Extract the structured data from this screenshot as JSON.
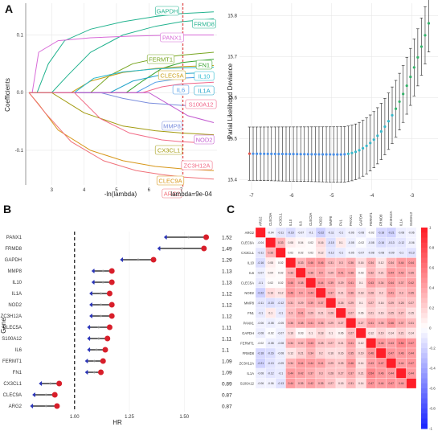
{
  "panels": {
    "a": "A",
    "b": "B",
    "c": "C"
  },
  "lasso_coef": {
    "type": "line",
    "xlabel": "-ln(lambda)",
    "ylabel": "Coefficients",
    "xticks": [
      3,
      4,
      5,
      6,
      7
    ],
    "yticks": [
      0.1,
      0.0,
      -0.1
    ],
    "xlim": [
      2.2,
      8.1
    ],
    "ylim": [
      -0.16,
      0.155
    ],
    "cutoff_x": 7.05,
    "cutoff_label": "lambda=9e-04",
    "series": [
      {
        "name": "GAPDH",
        "color": "#23b38f",
        "values": [
          [
            2.3,
            0
          ],
          [
            2.55,
            0
          ],
          [
            2.9,
            0.05
          ],
          [
            3.4,
            0.09
          ],
          [
            4.2,
            0.11
          ],
          [
            5.2,
            0.123
          ],
          [
            6.2,
            0.132
          ],
          [
            7.0,
            0.137
          ],
          [
            8.0,
            0.14
          ]
        ]
      },
      {
        "name": "FRMD8",
        "color": "#23b38f",
        "values": [
          [
            2.3,
            0
          ],
          [
            3.0,
            0
          ],
          [
            3.5,
            0.03
          ],
          [
            4.2,
            0.07
          ],
          [
            5.2,
            0.1
          ],
          [
            6.2,
            0.115
          ],
          [
            7.0,
            0.123
          ],
          [
            8.0,
            0.128
          ]
        ]
      },
      {
        "name": "PANX1",
        "color": "#d86bd8",
        "values": [
          [
            2.3,
            0
          ],
          [
            2.4,
            0
          ],
          [
            2.6,
            0.07
          ],
          [
            3.2,
            0.09
          ],
          [
            4.2,
            0.095
          ],
          [
            5.5,
            0.098
          ],
          [
            7.0,
            0.1
          ],
          [
            8.0,
            0.1
          ]
        ]
      },
      {
        "name": "FERMT1",
        "color": "#77a51f",
        "values": [
          [
            2.3,
            0
          ],
          [
            4.2,
            0
          ],
          [
            4.8,
            0.03
          ],
          [
            5.5,
            0.05
          ],
          [
            6.3,
            0.06
          ],
          [
            7.0,
            0.065
          ],
          [
            8.0,
            0.07
          ]
        ]
      },
      {
        "name": "FN1",
        "color": "#36a32f",
        "values": [
          [
            2.3,
            0
          ],
          [
            5.3,
            0
          ],
          [
            5.8,
            0.02
          ],
          [
            6.4,
            0.042
          ],
          [
            7.0,
            0.052
          ],
          [
            8.0,
            0.058
          ]
        ]
      },
      {
        "name": "CLEC5A",
        "color": "#c9a01a",
        "values": [
          [
            2.3,
            0
          ],
          [
            3.6,
            0
          ],
          [
            4.2,
            0.02
          ],
          [
            5.2,
            0.035
          ],
          [
            6.2,
            0.042
          ],
          [
            7.0,
            0.045
          ],
          [
            8.0,
            0.047
          ]
        ]
      },
      {
        "name": "IL10",
        "color": "#25b8cf",
        "values": [
          [
            2.3,
            0
          ],
          [
            3.7,
            0
          ],
          [
            4.3,
            0.025
          ],
          [
            5.2,
            0.036
          ],
          [
            6.2,
            0.041
          ],
          [
            7.0,
            0.043
          ],
          [
            8.0,
            0.044
          ]
        ]
      },
      {
        "name": "IL1A",
        "color": "#21a3c9",
        "values": [
          [
            2.3,
            0
          ],
          [
            4.8,
            0
          ],
          [
            5.5,
            0.02
          ],
          [
            6.3,
            0.03
          ],
          [
            7.0,
            0.033
          ],
          [
            8.0,
            0.035
          ]
        ]
      },
      {
        "name": "IL6",
        "color": "#4e9be6",
        "values": [
          [
            2.3,
            0
          ],
          [
            5.6,
            0
          ],
          [
            6.2,
            0.018
          ],
          [
            7.0,
            0.025
          ],
          [
            8.0,
            0.028
          ]
        ]
      },
      {
        "name": "S100A12",
        "color": "#f0668a",
        "values": [
          [
            2.3,
            0
          ],
          [
            5.8,
            0
          ],
          [
            6.4,
            0.01
          ],
          [
            7.0,
            0.015
          ],
          [
            8.0,
            0.018
          ]
        ]
      },
      {
        "name": "MMP8",
        "color": "#7a8ddd",
        "values": [
          [
            2.3,
            0
          ],
          [
            4.5,
            0
          ],
          [
            5.2,
            -0.01
          ],
          [
            6.0,
            -0.018
          ],
          [
            7.0,
            -0.022
          ],
          [
            8.0,
            -0.024
          ]
        ]
      },
      {
        "name": "NOD2",
        "color": "#c25ad0",
        "values": [
          [
            2.3,
            0
          ],
          [
            6.0,
            0
          ],
          [
            6.6,
            -0.02
          ],
          [
            7.2,
            -0.04
          ],
          [
            8.0,
            -0.052
          ]
        ]
      },
      {
        "name": "CX3CL1",
        "color": "#a39b10",
        "values": [
          [
            2.3,
            0
          ],
          [
            3.0,
            0
          ],
          [
            4.0,
            -0.035
          ],
          [
            5.2,
            -0.058
          ],
          [
            6.2,
            -0.066
          ],
          [
            7.0,
            -0.07
          ],
          [
            8.0,
            -0.073
          ]
        ]
      },
      {
        "name": "ZC3H12A",
        "color": "#f26b86",
        "values": [
          [
            2.3,
            0
          ],
          [
            3.7,
            0
          ],
          [
            4.5,
            -0.045
          ],
          [
            5.4,
            -0.07
          ],
          [
            6.4,
            -0.082
          ],
          [
            7.0,
            -0.085
          ],
          [
            8.0,
            -0.088
          ]
        ]
      },
      {
        "name": "CLEC9A",
        "color": "#d7971a",
        "values": [
          [
            2.3,
            0
          ],
          [
            2.6,
            -0.02
          ],
          [
            3.2,
            -0.065
          ],
          [
            4.2,
            -0.1
          ],
          [
            5.2,
            -0.118
          ],
          [
            6.2,
            -0.128
          ],
          [
            7.0,
            -0.132
          ],
          [
            8.0,
            -0.135
          ]
        ]
      },
      {
        "name": "ARG2",
        "color": "#f0727a",
        "values": [
          [
            2.3,
            0
          ],
          [
            2.8,
            -0.035
          ],
          [
            3.6,
            -0.085
          ],
          [
            4.6,
            -0.118
          ],
          [
            5.6,
            -0.135
          ],
          [
            6.4,
            -0.142
          ],
          [
            7.0,
            -0.146
          ],
          [
            8.0,
            -0.15
          ]
        ]
      }
    ]
  },
  "lasso_cv": {
    "type": "scatter",
    "ylabel": "Parial Likelihood Deviance",
    "xticks": [
      -7,
      -6,
      -5,
      -4,
      -3
    ],
    "yticks": [
      15.4,
      15.5,
      15.6,
      15.7,
      15.8
    ],
    "xlim": [
      -7.3,
      -2.35
    ],
    "ylim": [
      15.375,
      15.83
    ],
    "n_points": 50,
    "x_start": -7.05,
    "x_end": -2.58
  },
  "forest": {
    "type": "scatter",
    "ylabel": "Gene",
    "xlabel": "HR",
    "xticks": [
      "1.00",
      "1.25",
      "1.50"
    ],
    "xtick_values": [
      1.0,
      1.25,
      1.5
    ],
    "xlim": [
      0.77,
      1.62
    ],
    "ref_line": 1.0,
    "rows": [
      {
        "gene": "PANX1",
        "lo": 1.42,
        "mid": 1.52,
        "hi": 1.6,
        "hr": "1.52"
      },
      {
        "gene": "FRMD8",
        "lo": 1.39,
        "mid": 1.49,
        "hi": 1.59,
        "hr": "1.49"
      },
      {
        "gene": "GAPDH",
        "lo": 1.22,
        "mid": 1.29,
        "hi": 1.36,
        "hr": "1.29"
      },
      {
        "gene": "MMP8",
        "lo": 1.09,
        "mid": 1.13,
        "hi": 1.17,
        "hr": "1.13"
      },
      {
        "gene": "IL10",
        "lo": 1.09,
        "mid": 1.13,
        "hi": 1.17,
        "hr": "1.13"
      },
      {
        "gene": "IL1A",
        "lo": 1.08,
        "mid": 1.12,
        "hi": 1.16,
        "hr": "1.12"
      },
      {
        "gene": "NOD2",
        "lo": 1.08,
        "mid": 1.12,
        "hi": 1.17,
        "hr": "1.12"
      },
      {
        "gene": "ZC3H12A",
        "lo": 1.08,
        "mid": 1.12,
        "hi": 1.17,
        "hr": "1.12"
      },
      {
        "gene": "CLEC5A",
        "lo": 1.07,
        "mid": 1.11,
        "hi": 1.16,
        "hr": "1.11"
      },
      {
        "gene": "S100A12",
        "lo": 1.07,
        "mid": 1.11,
        "hi": 1.15,
        "hr": "1.11"
      },
      {
        "gene": "IL6",
        "lo": 1.07,
        "mid": 1.1,
        "hi": 1.14,
        "hr": "1.1"
      },
      {
        "gene": "FERMT1",
        "lo": 1.06,
        "mid": 1.09,
        "hi": 1.13,
        "hr": "1.09"
      },
      {
        "gene": "FN1",
        "lo": 1.06,
        "mid": 1.09,
        "hi": 1.12,
        "hr": "1.09"
      },
      {
        "gene": "CX3CL1",
        "lo": 0.85,
        "mid": 0.89,
        "hi": 0.93,
        "hr": "0.89"
      },
      {
        "gene": "CLEC9A",
        "lo": 0.82,
        "mid": 0.87,
        "hi": 0.91,
        "hr": "0.87"
      },
      {
        "gene": "ARG2",
        "lo": 0.81,
        "mid": 0.87,
        "hi": 0.92,
        "hr": "0.87"
      }
    ]
  },
  "correlation": {
    "type": "heatmap",
    "genes": [
      "ARG2",
      "CLEC9A",
      "CX3CL1",
      "IL10",
      "IL6",
      "CLEC5A",
      "NOD2",
      "MMP8",
      "FN1",
      "PANX1",
      "GAPDH",
      "FERMT1",
      "FRMD8",
      "ZC3H12A",
      "IL1A",
      "S100A12"
    ],
    "color_range": [
      -1,
      1
    ],
    "legend_ticks": [
      "1",
      "0.8",
      "0.6",
      "0.4",
      "0.2",
      "0",
      "-0.2",
      "-0.4",
      "-0.6",
      "-0.8",
      "-1"
    ],
    "matrix": [
      [
        1,
        -0.04,
        -0.11,
        -0.16,
        -0.07,
        -0.1,
        -0.22,
        -0.11,
        -0.1,
        -0.06,
        -0.08,
        -0.02,
        -0.18,
        -0.21,
        -0.08,
        -0.06
      ],
      [
        -0.04,
        1,
        0.33,
        0.08,
        0.04,
        0.02,
        0.16,
        -0.15,
        0.1,
        -0.08,
        -0.02,
        -0.08,
        -0.16,
        -0.13,
        -0.12,
        -0.06
      ],
      [
        -0.11,
        0.33,
        1,
        0.02,
        0.02,
        0.02,
        0.12,
        -0.12,
        -0.1,
        -0.05,
        -0.07,
        -0.08,
        -0.08,
        -0.09,
        -0.1,
        -0.13
      ],
      [
        -0.16,
        0.08,
        0.02,
        1,
        0.33,
        0.46,
        0.46,
        0.31,
        0.3,
        0.36,
        0.16,
        0.34,
        0.12,
        0.34,
        0.44,
        0.44
      ],
      [
        -0.07,
        0.04,
        0.02,
        0.33,
        1,
        0.38,
        0.4,
        0.29,
        0.41,
        0.38,
        0.03,
        0.32,
        0.21,
        0.44,
        0.42,
        0.35
      ],
      [
        -0.1,
        0.02,
        0.02,
        0.46,
        0.38,
        1,
        0.44,
        0.39,
        0.29,
        0.41,
        0.1,
        0.43,
        0.34,
        0.44,
        0.37,
        0.42
      ],
      [
        -0.22,
        0.16,
        0.12,
        0.46,
        0.4,
        0.44,
        1,
        0.37,
        0.21,
        0.36,
        0.18,
        0.28,
        0.2,
        0.41,
        0.3,
        0.35
      ],
      [
        -0.11,
        -0.15,
        -0.12,
        0.31,
        0.29,
        0.39,
        0.37,
        1,
        0.26,
        0.29,
        0.1,
        0.27,
        0.16,
        0.29,
        0.28,
        0.27
      ],
      [
        -0.1,
        0.1,
        -0.1,
        0.3,
        0.41,
        0.29,
        0.21,
        0.26,
        1,
        0.27,
        0.06,
        0.21,
        0.16,
        0.25,
        0.27,
        0.15
      ],
      [
        -0.06,
        -0.08,
        -0.05,
        0.36,
        0.38,
        0.41,
        0.36,
        0.29,
        0.27,
        1,
        0.27,
        0.41,
        0.35,
        0.46,
        0.37,
        0.31
      ],
      [
        -0.08,
        -0.02,
        -0.07,
        0.16,
        0.03,
        0.1,
        0.18,
        0.1,
        0.06,
        0.27,
        1,
        0.12,
        0.19,
        0.14,
        0.21,
        0.14
      ],
      [
        -0.02,
        -0.08,
        -0.08,
        0.34,
        0.32,
        0.43,
        0.28,
        0.27,
        0.21,
        0.41,
        0.12,
        1,
        0.46,
        0.43,
        0.54,
        0.47
      ],
      [
        -0.18,
        -0.16,
        -0.08,
        0.12,
        0.21,
        0.34,
        0.2,
        0.16,
        0.16,
        0.35,
        0.19,
        0.46,
        1,
        0.47,
        0.46,
        0.44
      ],
      [
        -0.21,
        -0.13,
        -0.09,
        0.34,
        0.44,
        0.44,
        0.41,
        0.29,
        0.25,
        0.46,
        0.14,
        0.43,
        0.47,
        1,
        0.44,
        0.47
      ],
      [
        -0.08,
        -0.12,
        -0.1,
        0.44,
        0.42,
        0.37,
        0.3,
        0.28,
        0.27,
        0.37,
        0.21,
        0.54,
        0.46,
        0.44,
        1,
        0.44
      ],
      [
        -0.06,
        -0.06,
        -0.13,
        0.44,
        0.35,
        0.42,
        0.35,
        0.27,
        0.15,
        0.31,
        0.14,
        0.47,
        0.44,
        0.47,
        0.44,
        1
      ]
    ]
  }
}
